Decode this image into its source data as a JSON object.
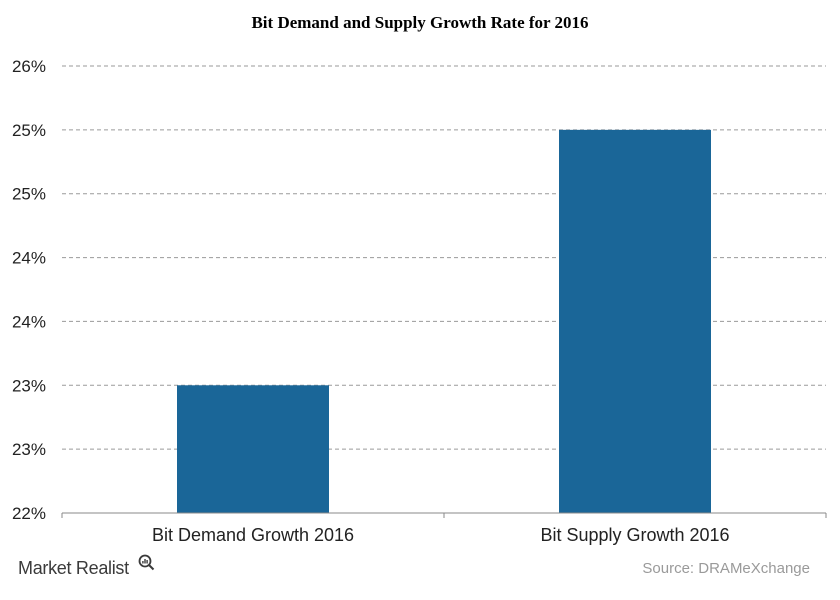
{
  "chart_data": {
    "type": "bar",
    "title": "Bit Demand and Supply Growth Rate for 2016",
    "categories": [
      "Bit Demand Growth 2016",
      "Bit Supply Growth 2016"
    ],
    "values": [
      23,
      25
    ],
    "ylim": [
      22,
      25.5
    ],
    "yticks": [
      "22%",
      "23%",
      "23%",
      "24%",
      "24%",
      "25%",
      "25%",
      "26%"
    ],
    "xlabel": "",
    "ylabel": "",
    "grid": true,
    "bar_color": "#1a6698",
    "grid_color": "#9a9a9a"
  },
  "footer": {
    "brand": "Market Realist",
    "brand_icon": "magnifier-icon",
    "source": "Source:  DRAMeXchange"
  }
}
